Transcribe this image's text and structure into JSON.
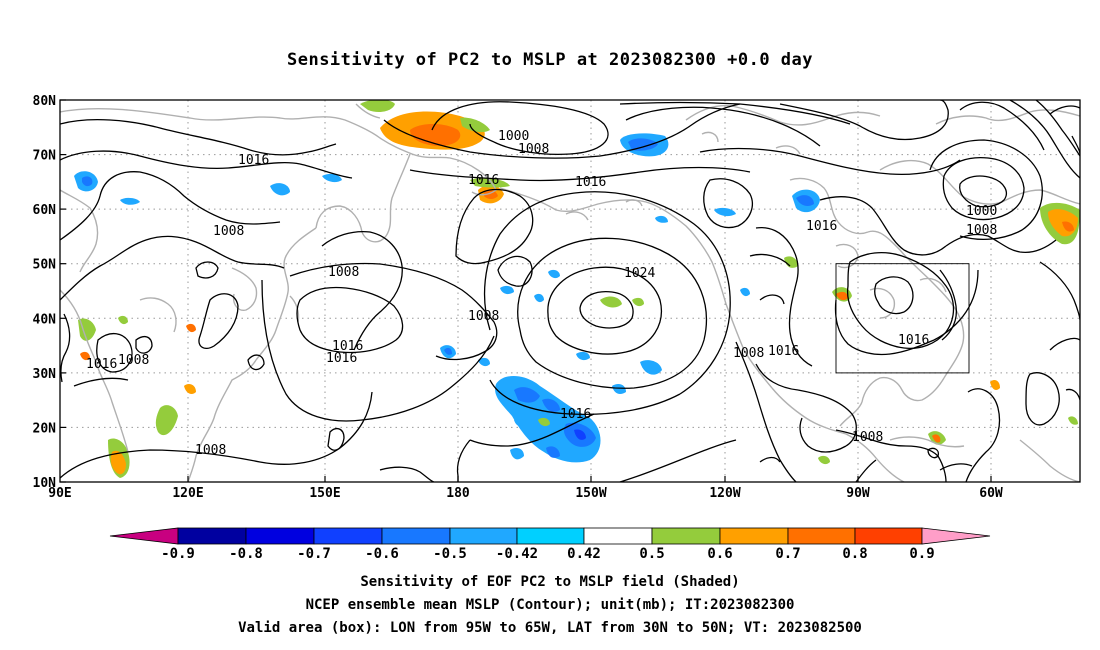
{
  "title": "Sensitivity of PC2 to MSLP at 2023082300 +0.0 day",
  "map": {
    "lat_ticks": [
      "80N",
      "70N",
      "60N",
      "50N",
      "40N",
      "30N",
      "20N",
      "10N"
    ],
    "lon_ticks": [
      "90E",
      "120E",
      "150E",
      "180",
      "150W",
      "120W",
      "90W",
      "60W"
    ],
    "valid_box": {
      "lon_from": "95W",
      "lon_to": "65W",
      "lat_from": "30N",
      "lat_to": "50N"
    },
    "contour_labels": [
      "1000",
      "1008",
      "1016",
      "1016",
      "1008",
      "1016",
      "1008",
      "1008",
      "1016",
      "1016",
      "1024",
      "1008",
      "1016",
      "1016",
      "1008",
      "1016",
      "1000",
      "1008",
      "1016",
      "1008",
      "1008",
      "1016",
      "1016",
      "1008"
    ]
  },
  "colorbar": {
    "labels": [
      "-0.9",
      "-0.8",
      "-0.7",
      "-0.6",
      "-0.5",
      "-0.42",
      "0.42",
      "0.5",
      "0.6",
      "0.7",
      "0.8",
      "0.9"
    ],
    "colors": [
      "#c80080",
      "#0000a0",
      "#0000e0",
      "#1040ff",
      "#1878ff",
      "#20a8ff",
      "#00d0ff",
      "#ffffff",
      "#94cc3c",
      "#ffa000",
      "#ff7000",
      "#ff4000",
      "#ff0000",
      "#ff9ec8"
    ]
  },
  "footer": {
    "line1": "Sensitivity of EOF PC2 to MSLP field (Shaded)",
    "line2": "NCEP ensemble mean MSLP (Contour); unit(mb); IT:2023082300",
    "line3": "Valid area (box): LON from 95W to 65W, LAT from 30N to 50N; VT: 2023082500"
  }
}
